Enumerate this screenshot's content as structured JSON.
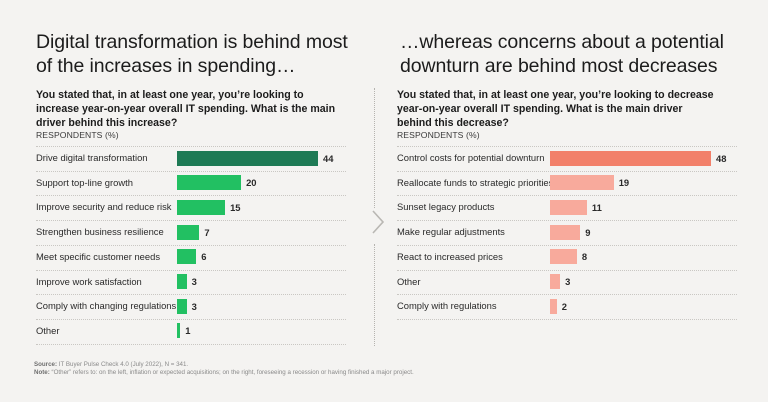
{
  "chart_data": [
    {
      "type": "bar",
      "orientation": "horizontal",
      "title": "Digital transformation is behind most of the increases in spending…",
      "subtitle": "You stated that, in at least one year, you’re looking to increase year-on-year overall IT spending. What is the main driver behind this increase?",
      "xlabel": "RESPONDENTS (%)",
      "ylabel": "",
      "categories": [
        "Drive digital transformation",
        "Support top-line growth",
        "Improve security and reduce risk",
        "Strengthen business resilience",
        "Meet specific customer needs",
        "Improve work satisfaction",
        "Comply with changing regulations",
        "Other"
      ],
      "values": [
        44,
        20,
        15,
        7,
        6,
        3,
        3,
        1
      ],
      "xlim": [
        0,
        44
      ],
      "grid": "dotted row separators",
      "highlight_color": "#1e7a55",
      "bar_color": "#22c062"
    },
    {
      "type": "bar",
      "orientation": "horizontal",
      "title": "…whereas concerns about a potential downturn are behind most decreases",
      "subtitle": "You stated that, in at least one year, you’re looking to decrease year-on-year overall IT spending. What is the main driver behind this decrease?",
      "xlabel": "RESPONDENTS (%)",
      "ylabel": "",
      "categories": [
        "Control costs for potential downturn",
        "Reallocate funds to strategic priorities",
        "Sunset legacy products",
        "Make regular adjustments",
        "React to increased prices",
        "Other",
        "Comply with regulations"
      ],
      "values": [
        48,
        19,
        11,
        9,
        8,
        3,
        2
      ],
      "xlim": [
        0,
        48
      ],
      "grid": "dotted row separators",
      "highlight_color": "#f2806a",
      "bar_color": "#f8aa9c"
    }
  ],
  "footer": {
    "source_label": "Source:",
    "source_text": " IT Buyer Pulse Check 4.0 (July 2022), N = 341.",
    "note_label": "Note:",
    "note_text": " “Other” refers to: on the left, inflation or expected acquisitions; on the right, foreseeing a recession or having finished a major project."
  },
  "icons": {
    "divider": "chevron-right-icon"
  }
}
